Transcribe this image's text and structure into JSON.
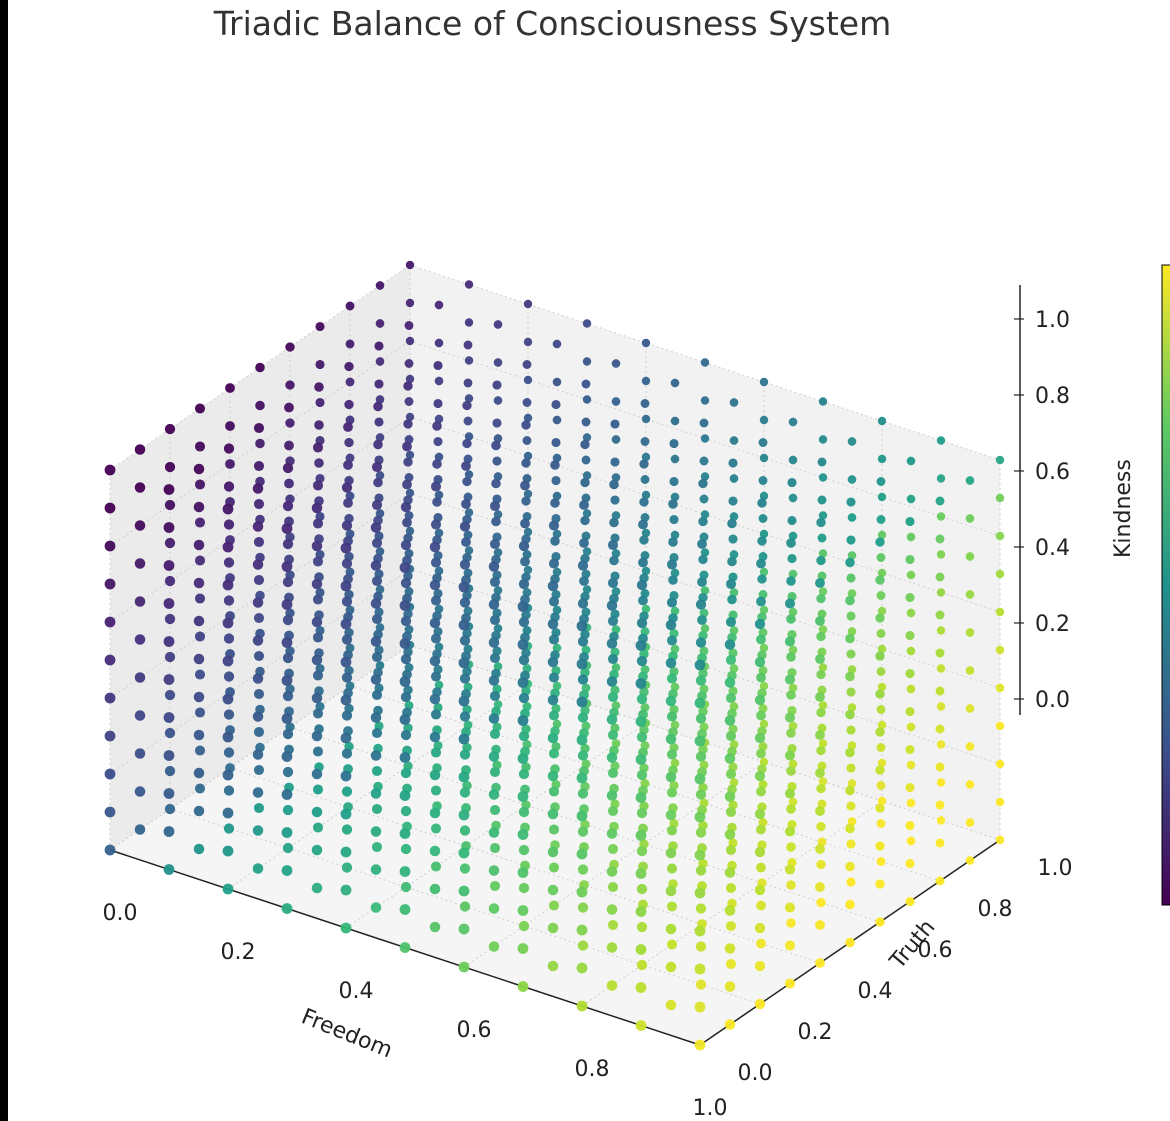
{
  "chart_data": {
    "type": "scatter3d",
    "title": "Triadic Balance of Consciousness System",
    "xlabel": "Freedom",
    "ylabel": "Truth",
    "zlabel": "Kindness",
    "xlim": [
      0,
      1
    ],
    "ylim": [
      0,
      1
    ],
    "zlim": [
      0,
      1
    ],
    "x_ticks": [
      "0.0",
      "0.2",
      "0.4",
      "0.6",
      "0.8",
      "1.0"
    ],
    "y_ticks": [
      "0.0",
      "0.2",
      "0.4",
      "0.6",
      "0.8",
      "1.0"
    ],
    "z_ticks": [
      "0.0",
      "0.2",
      "0.4",
      "0.6",
      "0.8",
      "1.0"
    ],
    "grid": true,
    "colormap": "viridis",
    "colorbar": "right",
    "points": {
      "description_of_sampling": "regular 11x11x11 lattice",
      "x_values": [
        0,
        0.1,
        0.2,
        0.3,
        0.4,
        0.5,
        0.6,
        0.7,
        0.8,
        0.9,
        1.0
      ],
      "y_values": [
        0,
        0.1,
        0.2,
        0.3,
        0.4,
        0.5,
        0.6,
        0.7,
        0.8,
        0.9,
        1.0
      ],
      "z_values": [
        0,
        0.1,
        0.2,
        0.3,
        0.4,
        0.5,
        0.6,
        0.7,
        0.8,
        0.9,
        1.0
      ]
    }
  }
}
